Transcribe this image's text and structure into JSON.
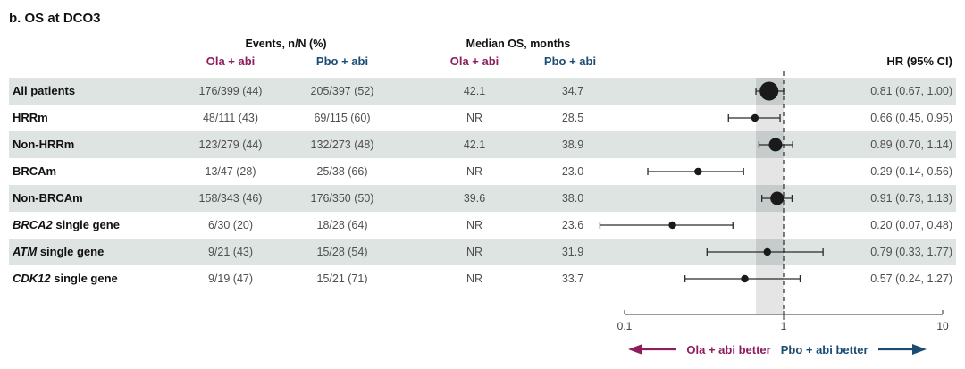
{
  "title": "b. OS at DCO3",
  "header": {
    "events_group": "Events, n/N (%)",
    "median_group": "Median OS, months",
    "ola_label": "Ola + abi",
    "pbo_label": "Pbo + abi",
    "hr_label": "HR (95% CI)"
  },
  "colors": {
    "ola_accent": "#8E1D5D",
    "pbo_accent": "#1B4C74",
    "row_shade": "#dde4e2",
    "marker": "#1a1a1a"
  },
  "rows": [
    {
      "label_italic": "",
      "label_rest": "All patients",
      "events_ola": "176/399 (44)",
      "events_pbo": "205/397 (52)",
      "median_ola": "42.1",
      "median_pbo": "34.7",
      "hr_text": "0.81 (0.67, 1.00)",
      "shaded": true
    },
    {
      "label_italic": "",
      "label_rest": "HRRm",
      "events_ola": "48/111 (43)",
      "events_pbo": "69/115 (60)",
      "median_ola": "NR",
      "median_pbo": "28.5",
      "hr_text": "0.66 (0.45, 0.95)",
      "shaded": false
    },
    {
      "label_italic": "",
      "label_rest": "Non-HRRm",
      "events_ola": "123/279 (44)",
      "events_pbo": "132/273 (48)",
      "median_ola": "42.1",
      "median_pbo": "38.9",
      "hr_text": "0.89 (0.70, 1.14)",
      "shaded": true
    },
    {
      "label_italic": "",
      "label_rest": "BRCAm",
      "events_ola": "13/47 (28)",
      "events_pbo": "25/38 (66)",
      "median_ola": "NR",
      "median_pbo": "23.0",
      "hr_text": "0.29 (0.14, 0.56)",
      "shaded": false
    },
    {
      "label_italic": "",
      "label_rest": "Non-BRCAm",
      "events_ola": "158/343 (46)",
      "events_pbo": "176/350 (50)",
      "median_ola": "39.6",
      "median_pbo": "38.0",
      "hr_text": "0.91 (0.73, 1.13)",
      "shaded": true
    },
    {
      "label_italic": "BRCA2",
      "label_rest": " single gene",
      "events_ola": "6/30 (20)",
      "events_pbo": "18/28 (64)",
      "median_ola": "NR",
      "median_pbo": "23.6",
      "hr_text": "0.20 (0.07, 0.48)",
      "shaded": false
    },
    {
      "label_italic": "ATM",
      "label_rest": " single gene",
      "events_ola": "9/21 (43)",
      "events_pbo": "15/28 (54)",
      "median_ola": "NR",
      "median_pbo": "31.9",
      "hr_text": "0.79 (0.33, 1.77)",
      "shaded": true
    },
    {
      "label_italic": "CDK12",
      "label_rest": " single gene",
      "events_ola": "9/19 (47)",
      "events_pbo": "15/21 (71)",
      "median_ola": "NR",
      "median_pbo": "33.7",
      "hr_text": "0.57 (0.24, 1.27)",
      "shaded": false
    }
  ],
  "chart_data": {
    "type": "scatter",
    "subtype": "forest_plot",
    "title": "b. OS at DCO3",
    "x_scale": "log",
    "xlim": [
      0.1,
      10
    ],
    "x_tick_labels": [
      "0.1",
      "1",
      "10"
    ],
    "x_tick_values": [
      0.1,
      1,
      10
    ],
    "reference_line": 1,
    "shaded_band": [
      0.67,
      1.0
    ],
    "categories": [
      "All patients",
      "HRRm",
      "Non-HRRm",
      "BRCAm",
      "Non-BRCAm",
      "BRCA2 single gene",
      "ATM single gene",
      "CDK12 single gene"
    ],
    "hr": [
      0.81,
      0.66,
      0.89,
      0.29,
      0.91,
      0.2,
      0.79,
      0.57
    ],
    "ci_lower": [
      0.67,
      0.45,
      0.7,
      0.14,
      0.73,
      0.07,
      0.33,
      0.24
    ],
    "ci_upper": [
      1.0,
      0.95,
      1.14,
      0.56,
      1.13,
      0.48,
      1.77,
      1.27
    ],
    "marker_size": [
      "large",
      "small",
      "medium",
      "small",
      "medium",
      "small",
      "small",
      "small"
    ],
    "legend_position": "bottom"
  },
  "footer": {
    "left_label": "Ola + abi better",
    "right_label": "Pbo + abi better"
  }
}
